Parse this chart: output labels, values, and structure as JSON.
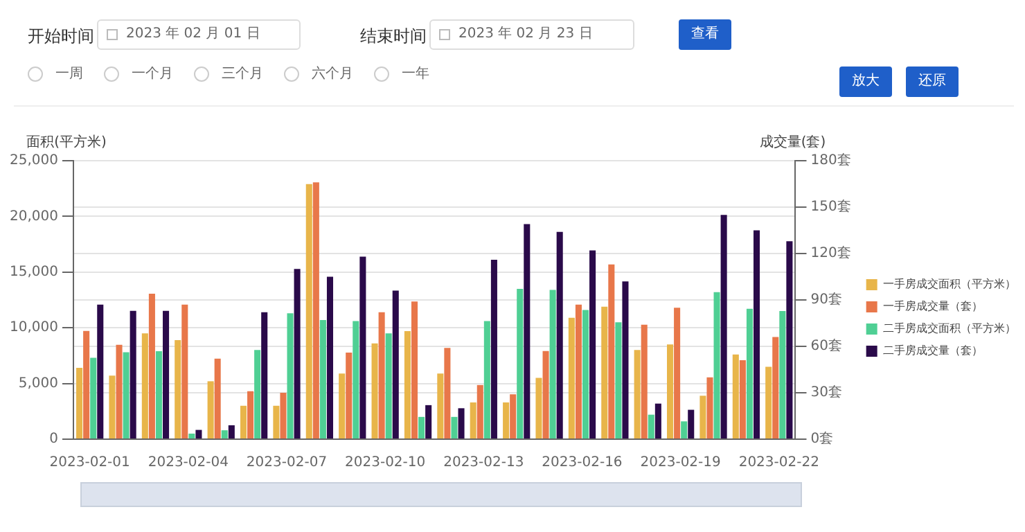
{
  "chart_data": {
    "type": "bar",
    "ylabel": "面积(平方米)",
    "y2label": "成交量(套)",
    "annotations": [
      "开始时间",
      "2023 年 02 月 01 日",
      "结束时间",
      "2023 年 02 月 23 日",
      "查看",
      "一周",
      "一个月",
      "三个月",
      "六个月",
      "一年",
      "放大",
      "还原"
    ],
    "categories": [
      "2023-02-01",
      null,
      null,
      "2023-02-04",
      null,
      null,
      "2023-02-07",
      null,
      null,
      "2023-02-10",
      null,
      null,
      "2023-02-13",
      null,
      null,
      "2023-02-16",
      null,
      null,
      "2023-02-19",
      null,
      null,
      "2023-02-22"
    ],
    "series": [
      {
        "name": "一手房成交面积（平方米）",
        "color": "#e8b54a",
        "values": [
          6400,
          5700,
          9500,
          8900,
          5200,
          3000,
          3000,
          22900,
          5900,
          8600,
          9700,
          5900,
          3300,
          3300,
          5500,
          10900,
          11900,
          8000,
          8500,
          3900,
          7600,
          6500
        ]
      },
      {
        "name": "一手房成交量（套）",
        "color": "#e8774a",
        "axis": "y2",
        "values": [
          70,
          61,
          94,
          87,
          52,
          31,
          30,
          166,
          56,
          82,
          89,
          59,
          35,
          29,
          57,
          87,
          113,
          74,
          85,
          40,
          51,
          66
        ]
      },
      {
        "name": "二手房成交面积（平方米）",
        "color": "#4fcf94",
        "values": [
          7300,
          7800,
          7900,
          500,
          800,
          8000,
          11300,
          10700,
          10600,
          9500,
          2000,
          2000,
          10600,
          13500,
          13400,
          11600,
          10500,
          2200,
          1600,
          13200,
          11700,
          11500
        ]
      },
      {
        "name": "二手房成交量（套）",
        "color": "#2a0a4a",
        "axis": "y2",
        "values": [
          87,
          83,
          83,
          6,
          9,
          82,
          110,
          105,
          118,
          96,
          22,
          20,
          116,
          139,
          134,
          122,
          102,
          23,
          19,
          145,
          135,
          128
        ]
      }
    ],
    "ylim": [
      0,
      25000
    ],
    "yticks": [
      0,
      {
        "value": 5000,
        "label": "5,000"
      },
      {
        "value": 10000,
        "label": "10,000"
      },
      {
        "value": 15000,
        "label": "15,000"
      },
      {
        "value": 20000,
        "label": "20,000"
      },
      {
        "value": 25000,
        "label": "25,000"
      }
    ],
    "y2lim": [
      0,
      180
    ],
    "y2ticks": [
      {
        "value": 0,
        "label": "0套"
      },
      {
        "value": 30,
        "label": "30套"
      },
      {
        "value": 60,
        "label": "60套"
      },
      {
        "value": 90,
        "label": "90套"
      },
      {
        "value": 120,
        "label": "120套"
      },
      {
        "value": 150,
        "label": "150套"
      },
      {
        "value": 180,
        "label": "180套"
      }
    ],
    "grid": "y",
    "legend": "right"
  }
}
